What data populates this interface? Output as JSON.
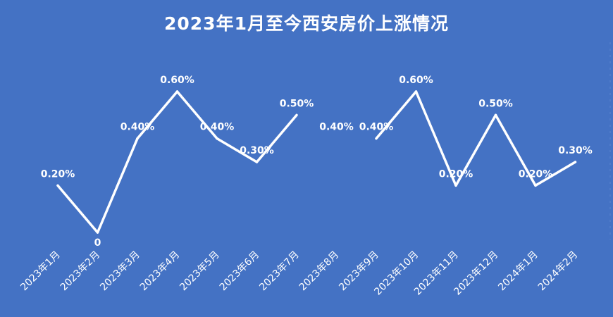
{
  "chart_data": {
    "type": "line",
    "title": "2023年1月至今西安房价上涨情况",
    "xlabel": "",
    "ylabel": "",
    "categories": [
      "2023年1月",
      "2023年2月",
      "2023年3月",
      "2023年4月",
      "2023年5月",
      "2023年6月",
      "2023年7月",
      "2023年8月",
      "2023年9月",
      "2023年10月",
      "2023年11月",
      "2023年12月",
      "2024年1月",
      "2024年2月"
    ],
    "series": [
      {
        "values": [
          0.2,
          0,
          0.4,
          0.6,
          0.4,
          0.3,
          0.5,
          0.4,
          0.4,
          0.6,
          0.2,
          0.5,
          0.2,
          0.3
        ],
        "labels": [
          "0.20%",
          "0",
          "0.40%",
          "0.60%",
          "0.40%",
          "0.30%",
          "0.50%",
          "0.40%",
          "0.40%",
          "0.60%",
          "0.20%",
          "0.50%",
          "0.20%",
          "0.30%"
        ],
        "segments_drawn": [
          true,
          true,
          true,
          true,
          true,
          true,
          false,
          false,
          true,
          true,
          true,
          true,
          true
        ]
      }
    ],
    "ylim": [
      0,
      0.6
    ],
    "grid": false,
    "legend": "none",
    "colors": {
      "background": "#4472c4",
      "line": "#ffffff",
      "text": "#ffffff"
    }
  }
}
